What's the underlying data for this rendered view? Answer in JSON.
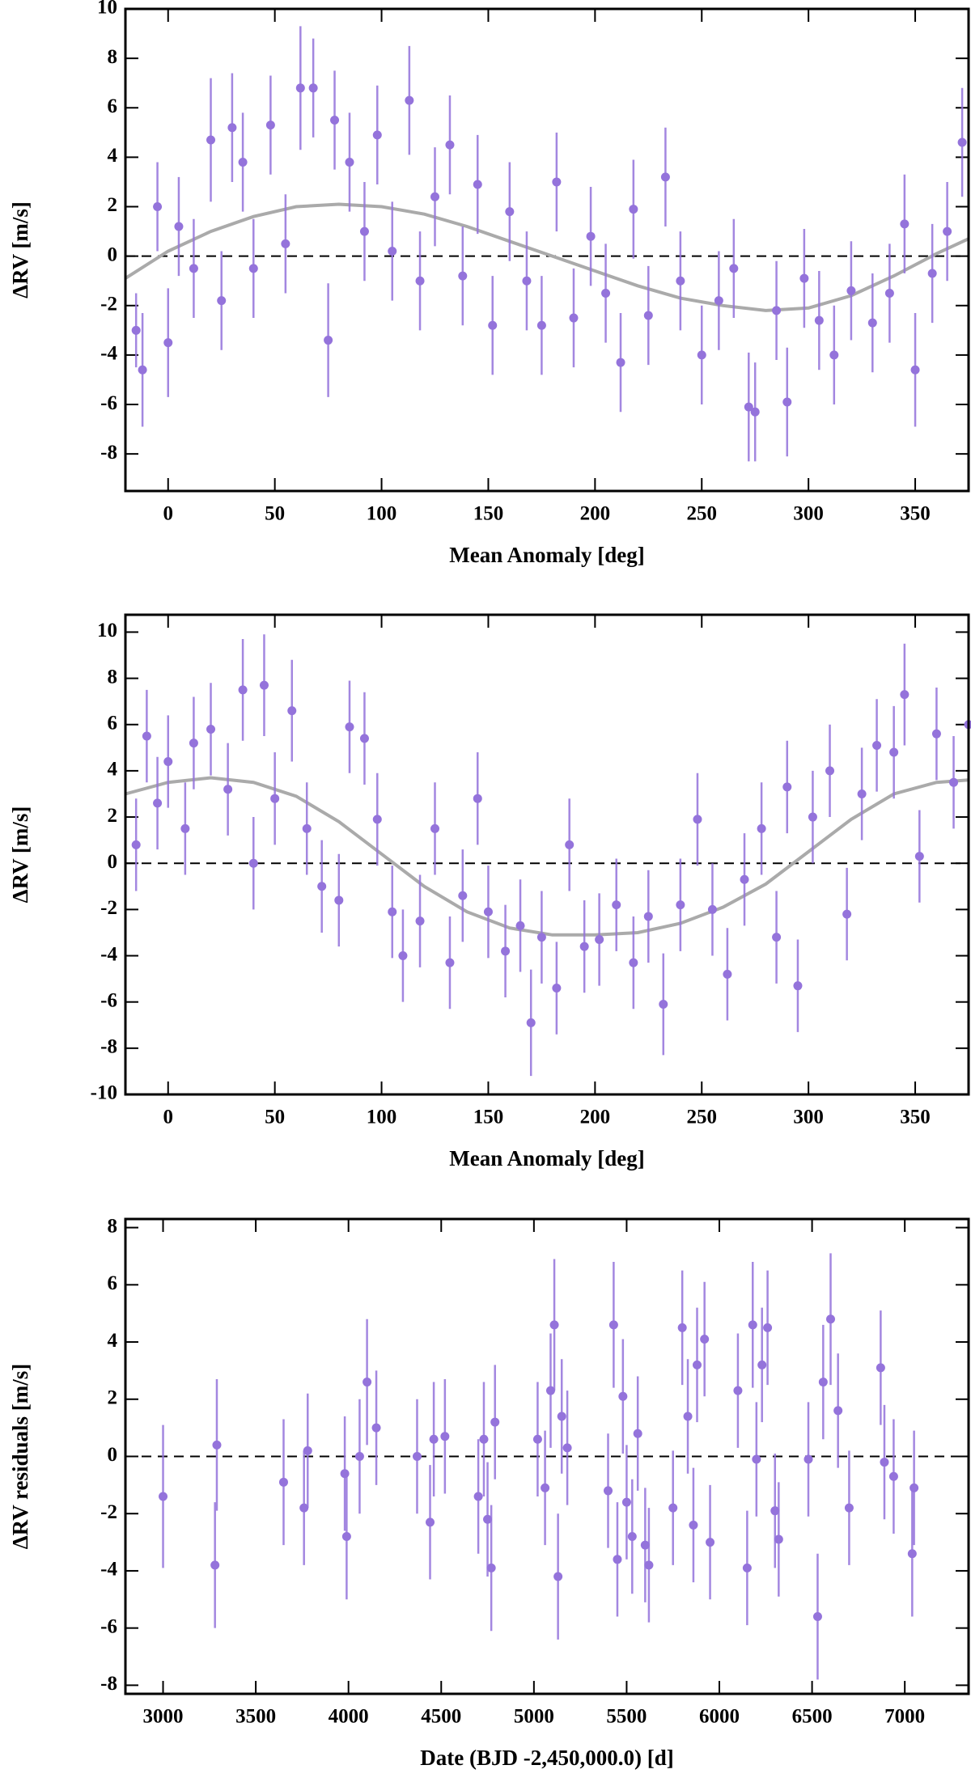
{
  "chart_data": [
    {
      "type": "scatter",
      "xlabel": "Mean Anomaly [deg]",
      "ylabel": "ΔRV [m/s]",
      "xlim": [
        -20,
        375
      ],
      "ylim": [
        -9.5,
        10
      ],
      "xticks": [
        0,
        50,
        100,
        150,
        200,
        250,
        300,
        350
      ],
      "yticks": [
        -8,
        -6,
        -4,
        -2,
        0,
        2,
        4,
        6,
        8,
        10
      ],
      "color": "#9473db",
      "hline": 0,
      "x": [
        -15,
        -12,
        -5,
        0,
        5,
        12,
        20,
        25,
        30,
        35,
        40,
        48,
        55,
        62,
        68,
        75,
        78,
        85,
        92,
        98,
        105,
        113,
        118,
        125,
        132,
        138,
        145,
        152,
        160,
        168,
        175,
        182,
        190,
        198,
        205,
        212,
        218,
        225,
        233,
        240,
        250,
        258,
        265,
        272,
        275,
        285,
        290,
        298,
        305,
        312,
        320,
        330,
        338,
        345,
        350,
        358,
        365,
        372
      ],
      "values": [
        -3,
        -4.6,
        2,
        -3.5,
        1.2,
        -0.5,
        4.7,
        -1.8,
        5.2,
        3.8,
        -0.5,
        5.3,
        0.5,
        6.8,
        6.8,
        -3.4,
        5.5,
        3.8,
        1,
        4.9,
        0.2,
        6.3,
        -1,
        2.4,
        4.5,
        -0.8,
        2.9,
        -2.8,
        1.8,
        -1,
        -2.8,
        3,
        -2.5,
        0.8,
        -1.5,
        -4.3,
        1.9,
        -2.4,
        3.2,
        -1,
        -4,
        -1.8,
        -0.5,
        -6.1,
        -6.3,
        -2.2,
        -5.9,
        -0.9,
        -2.6,
        -4,
        -1.4,
        -2.7,
        -1.5,
        1.3,
        -4.6,
        -0.7,
        1,
        4.6
      ],
      "errors": [
        1.5,
        2.3,
        1.8,
        2.2,
        2,
        2,
        2.5,
        2,
        2.2,
        2,
        2,
        2,
        2,
        2.5,
        2,
        2.3,
        2,
        2,
        2,
        2,
        2,
        2.2,
        2,
        2,
        2,
        2,
        2,
        2,
        2,
        2,
        2,
        2,
        2,
        2,
        2,
        2,
        2,
        2,
        2,
        2,
        2,
        2,
        2,
        2.2,
        2,
        2,
        2.2,
        2,
        2,
        2,
        2,
        2,
        2,
        2,
        2.3,
        2,
        2,
        2.2
      ],
      "fit": {
        "color": "#aaaaaa",
        "x": [
          -20,
          0,
          20,
          40,
          60,
          80,
          100,
          120,
          140,
          160,
          180,
          200,
          220,
          240,
          260,
          280,
          300,
          320,
          340,
          360,
          375
        ],
        "values": [
          -0.9,
          0.2,
          1,
          1.6,
          2,
          2.1,
          2,
          1.7,
          1.2,
          0.6,
          0,
          -0.6,
          -1.2,
          -1.7,
          -2,
          -2.2,
          -2.1,
          -1.6,
          -0.8,
          0.1,
          0.7
        ]
      }
    },
    {
      "type": "scatter",
      "xlabel": "Mean Anomaly [deg]",
      "ylabel": "ΔRV [m/s]",
      "xlim": [
        -20,
        375
      ],
      "ylim": [
        -10,
        10.75
      ],
      "xticks": [
        0,
        50,
        100,
        150,
        200,
        250,
        300,
        350
      ],
      "yticks": [
        -10,
        -8,
        -6,
        -4,
        -2,
        0,
        2,
        4,
        6,
        8,
        10
      ],
      "color": "#9473db",
      "hline": 0,
      "x": [
        -15,
        -10,
        -5,
        0,
        8,
        12,
        20,
        28,
        35,
        40,
        45,
        50,
        58,
        65,
        72,
        80,
        85,
        92,
        98,
        105,
        110,
        118,
        125,
        132,
        138,
        145,
        150,
        158,
        165,
        170,
        175,
        182,
        188,
        195,
        202,
        210,
        218,
        225,
        232,
        240,
        248,
        255,
        262,
        270,
        278,
        285,
        290,
        295,
        302,
        310,
        318,
        325,
        332,
        340,
        345,
        352,
        360,
        368,
        375
      ],
      "values": [
        0.8,
        5.5,
        2.6,
        4.4,
        1.5,
        5.2,
        5.8,
        3.2,
        7.5,
        0,
        7.7,
        2.8,
        6.6,
        1.5,
        -1,
        -1.6,
        5.9,
        5.4,
        1.9,
        -2.1,
        -4,
        -2.5,
        1.5,
        -4.3,
        -1.4,
        2.8,
        -2.1,
        -3.8,
        -2.7,
        -6.9,
        -3.2,
        -5.4,
        0.8,
        -3.6,
        -3.3,
        -1.8,
        -4.3,
        -2.3,
        -6.1,
        -1.8,
        1.9,
        -2,
        -4.8,
        -0.7,
        1.5,
        -3.2,
        3.3,
        -5.3,
        2,
        4,
        -2.2,
        3,
        5.1,
        4.8,
        7.3,
        0.3,
        5.6,
        3.5,
        6
      ],
      "errors": [
        2,
        2,
        2,
        2,
        2,
        2,
        2,
        2,
        2.2,
        2,
        2.2,
        2,
        2.2,
        2,
        2,
        2,
        2,
        2,
        2,
        2,
        2,
        2,
        2,
        2,
        2,
        2,
        2,
        2,
        2,
        2.3,
        2,
        2,
        2,
        2,
        2,
        2,
        2,
        2,
        2.2,
        2,
        2,
        2,
        2,
        2,
        2,
        2,
        2,
        2,
        2,
        2,
        2,
        2,
        2,
        2,
        2.2,
        2,
        2,
        2,
        2
      ],
      "fit": {
        "color": "#aaaaaa",
        "x": [
          -20,
          0,
          20,
          40,
          60,
          80,
          100,
          120,
          140,
          160,
          180,
          200,
          220,
          240,
          260,
          280,
          300,
          320,
          340,
          360,
          375
        ],
        "values": [
          3,
          3.5,
          3.7,
          3.5,
          2.9,
          1.8,
          0.4,
          -1,
          -2.1,
          -2.8,
          -3.1,
          -3.1,
          -3,
          -2.6,
          -1.9,
          -0.9,
          0.5,
          1.9,
          3,
          3.5,
          3.6
        ]
      }
    },
    {
      "type": "scatter",
      "xlabel": "Date (BJD -2,450,000.0) [d]",
      "ylabel": "ΔRV residuals [m/s]",
      "xlim": [
        2797,
        7344
      ],
      "ylim": [
        -8.3,
        8.3
      ],
      "xticks": [
        3000,
        3500,
        4000,
        4500,
        5000,
        5500,
        6000,
        6500,
        7000
      ],
      "yticks": [
        -8,
        -6,
        -4,
        -2,
        0,
        2,
        4,
        6,
        8
      ],
      "color": "#9473db",
      "hline": 0,
      "x": [
        3000,
        3280,
        3290,
        3650,
        3760,
        3780,
        3980,
        3990,
        4060,
        4100,
        4150,
        4370,
        4440,
        4460,
        4520,
        4700,
        4730,
        4750,
        4770,
        4790,
        5020,
        5060,
        5090,
        5110,
        5130,
        5150,
        5180,
        5400,
        5430,
        5450,
        5480,
        5500,
        5530,
        5560,
        5600,
        5620,
        5750,
        5800,
        5830,
        5860,
        5880,
        5920,
        5950,
        6100,
        6150,
        6180,
        6200,
        6230,
        6260,
        6300,
        6320,
        6480,
        6530,
        6560,
        6600,
        6640,
        6700,
        6870,
        6890,
        6940,
        7040,
        7050
      ],
      "values": [
        -1.4,
        -3.8,
        0.4,
        -0.9,
        -1.8,
        0.2,
        -0.6,
        -2.8,
        0,
        2.6,
        1,
        0,
        -2.3,
        0.6,
        0.7,
        -1.4,
        0.6,
        -2.2,
        -3.9,
        1.2,
        0.6,
        -1.1,
        2.3,
        4.6,
        -4.2,
        1.4,
        0.3,
        -1.2,
        4.6,
        -3.6,
        2.1,
        -1.6,
        -2.8,
        0.8,
        -3.1,
        -3.8,
        -1.8,
        4.5,
        1.4,
        -2.4,
        3.2,
        4.1,
        -3,
        2.3,
        -3.9,
        4.6,
        -0.1,
        3.2,
        4.5,
        -1.9,
        -2.9,
        -0.1,
        -5.6,
        2.6,
        4.8,
        1.6,
        -1.8,
        3.1,
        -0.2,
        -0.7,
        -3.4,
        -1.1
      ],
      "errors": [
        2.5,
        2.2,
        2.3,
        2.2,
        2,
        2,
        2,
        2.2,
        2,
        2.2,
        2,
        2,
        2,
        2,
        2,
        2,
        2,
        2,
        2.2,
        2,
        2,
        2,
        2,
        2.3,
        2.2,
        2,
        2,
        2,
        2.2,
        2,
        2,
        2,
        2,
        2,
        2,
        2,
        2,
        2,
        2,
        2,
        2,
        2,
        2,
        2,
        2,
        2.2,
        2,
        2,
        2,
        2,
        2,
        2,
        2.2,
        2,
        2.3,
        2,
        2,
        2,
        2,
        2,
        2.2,
        2
      ]
    }
  ]
}
